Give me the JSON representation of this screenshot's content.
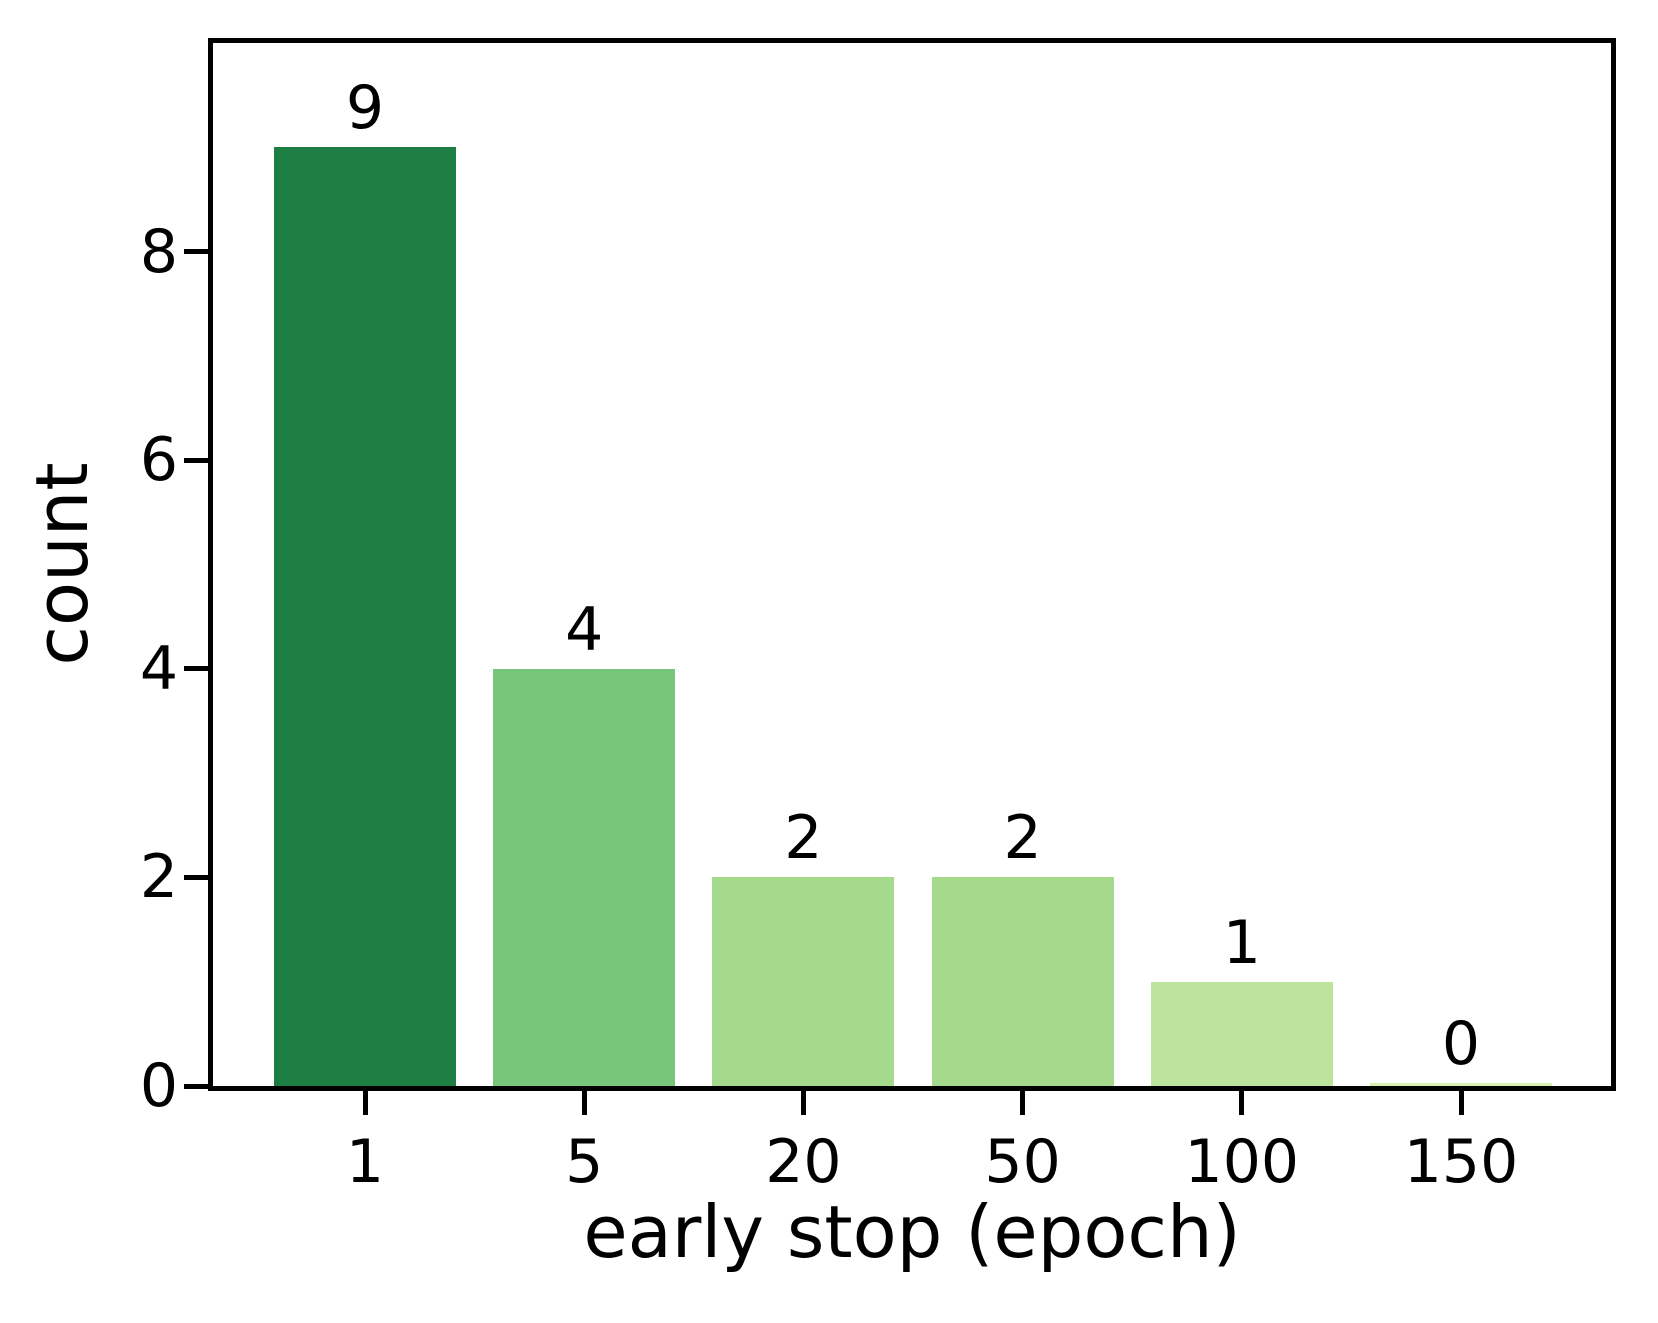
{
  "chart_data": {
    "type": "bar",
    "categories": [
      "1",
      "5",
      "20",
      "50",
      "100",
      "150"
    ],
    "values": [
      9,
      4,
      2,
      2,
      1,
      0
    ],
    "bar_labels": [
      "9",
      "4",
      "2",
      "2",
      "1",
      "0"
    ],
    "bar_colors": [
      "#1d7e43",
      "#78c679",
      "#a5da8c",
      "#a5da8c",
      "#bce49d",
      "#d9efad"
    ],
    "xlabel": "early stop (epoch)",
    "ylabel": "count",
    "ylim": [
      0,
      10
    ],
    "yticks": [
      0,
      2,
      4,
      6,
      8
    ],
    "grid": false,
    "legend": null,
    "spine_color": "#000000"
  }
}
